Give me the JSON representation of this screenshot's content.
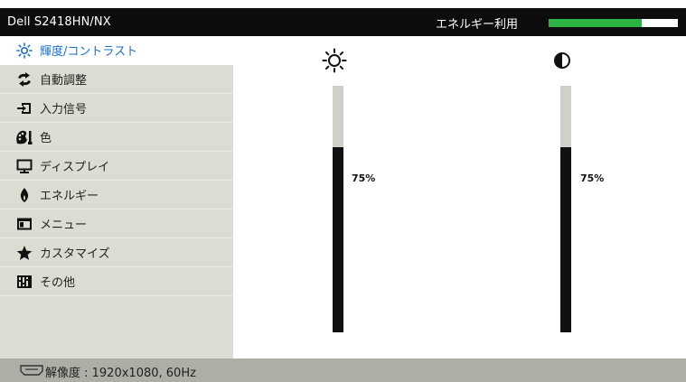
{
  "header": {
    "model": "Dell S2418HN/NX",
    "energy_label": "エネルギー利用",
    "energy_level": 0.72,
    "energy_color": "#2bb343"
  },
  "sidebar": {
    "items": [
      {
        "label": "輝度/コントラスト",
        "icon": "brightness-icon",
        "active": true
      },
      {
        "label": "自動調整",
        "icon": "auto-adjust-icon",
        "active": false
      },
      {
        "label": "入力信号",
        "icon": "input-source-icon",
        "active": false
      },
      {
        "label": "色",
        "icon": "color-icon",
        "active": false
      },
      {
        "label": "ディスプレイ",
        "icon": "display-icon",
        "active": false
      },
      {
        "label": "エネルギー",
        "icon": "energy-icon",
        "active": false
      },
      {
        "label": "メニュー",
        "icon": "menu-icon",
        "active": false
      },
      {
        "label": "カスタマイズ",
        "icon": "star-icon",
        "active": false
      },
      {
        "label": "その他",
        "icon": "others-icon",
        "active": false
      }
    ]
  },
  "main": {
    "brightness": {
      "icon": "sun-icon",
      "value_label": "75%",
      "level": 0.75
    },
    "contrast": {
      "icon": "contrast-icon",
      "value_label": "75%",
      "level": 0.75
    }
  },
  "footer": {
    "icon": "hdmi-icon",
    "resolution_text": "解像度 : 1920x1080, 60Hz"
  },
  "colors": {
    "active_text": "#1a6fc8",
    "sidebar_bg": "#dcdcd3",
    "header_bg": "#0d0d0d",
    "footer_bg": "#aeaea6"
  }
}
